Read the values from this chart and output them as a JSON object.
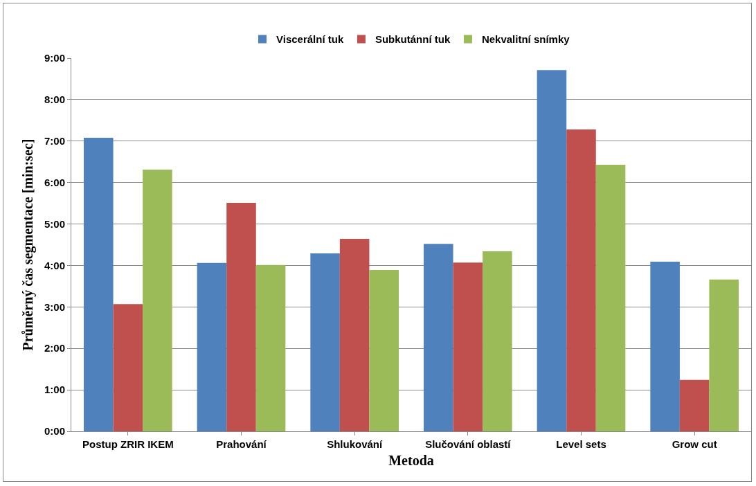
{
  "chart_data": {
    "type": "bar",
    "xlabel": "Metoda",
    "ylabel": "Průměrný čas segmentace [min:sec]",
    "categories": [
      "Postup ZRIR IKEM",
      "Prahování",
      "Shlukování",
      "Slučování oblastí",
      "Level sets",
      "Grow cut"
    ],
    "series": [
      {
        "name": "Viscerální tuk",
        "color": "#4f81bd",
        "values": [
          7.08,
          4.06,
          4.29,
          4.52,
          8.71,
          4.09
        ]
      },
      {
        "name": "Subkutánní tuk",
        "color": "#c0504d",
        "values": [
          3.07,
          5.51,
          4.64,
          4.07,
          7.28,
          1.24
        ]
      },
      {
        "name": "Nekvalitní snímky",
        "color": "#9bbb59",
        "values": [
          6.31,
          4.01,
          3.89,
          4.34,
          6.43,
          3.66
        ]
      }
    ],
    "ylim": [
      0,
      9
    ],
    "yticks": [
      {
        "value": 0,
        "label": "0:00"
      },
      {
        "value": 1,
        "label": "1:00"
      },
      {
        "value": 2,
        "label": "2:00"
      },
      {
        "value": 3,
        "label": "3:00"
      },
      {
        "value": 4,
        "label": "4:00"
      },
      {
        "value": 5,
        "label": "5:00"
      },
      {
        "value": 6,
        "label": "6:00"
      },
      {
        "value": 7,
        "label": "7:00"
      },
      {
        "value": 8,
        "label": "8:00"
      },
      {
        "value": 9,
        "label": "9:00"
      }
    ],
    "grid": "y",
    "legend": "top"
  }
}
